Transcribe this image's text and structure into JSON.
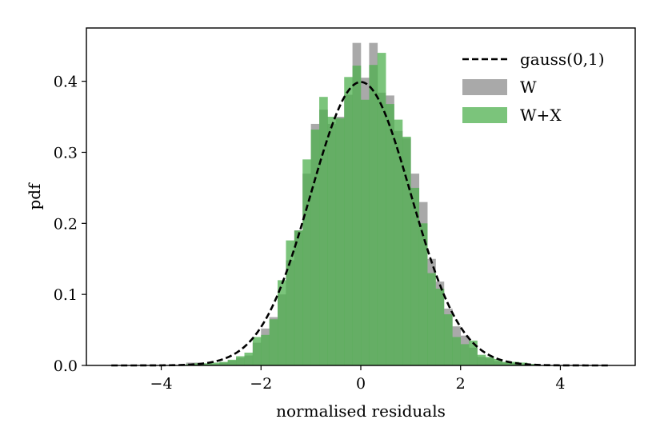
{
  "chart_data": {
    "type": "bar",
    "title": "",
    "xlabel": "normalised residuals",
    "ylabel": "pdf",
    "xlim": [
      -5.5,
      5.5
    ],
    "ylim": [
      0,
      0.475
    ],
    "xticks": [
      -4,
      -2,
      0,
      2,
      4
    ],
    "xtick_labels": [
      "−4",
      "−2",
      "0",
      "2",
      "4"
    ],
    "yticks": [
      0.0,
      0.1,
      0.2,
      0.3,
      0.4
    ],
    "ytick_labels": [
      "0.0",
      "0.1",
      "0.2",
      "0.3",
      "0.4"
    ],
    "grid": false,
    "legend_position": "top-right",
    "bin_width": 0.1667,
    "series": [
      {
        "name": "gauss(0,1)",
        "kind": "line",
        "style": "dashed",
        "color": "#000000",
        "function": "standard normal pdf",
        "x_range": [
          -5,
          5
        ]
      },
      {
        "name": "W",
        "kind": "histogram",
        "color": "#a9a9a9",
        "bins": [
          {
            "left": -3.5,
            "value": 0.004
          },
          {
            "left": -3.333,
            "value": 0.004
          },
          {
            "left": -3.167,
            "value": 0.002
          },
          {
            "left": -3.0,
            "value": 0.002
          },
          {
            "left": -2.833,
            "value": 0.004
          },
          {
            "left": -2.667,
            "value": 0.007
          },
          {
            "left": -2.5,
            "value": 0.011
          },
          {
            "left": -2.333,
            "value": 0.014
          },
          {
            "left": -2.167,
            "value": 0.032
          },
          {
            "left": -2.0,
            "value": 0.052
          },
          {
            "left": -1.833,
            "value": 0.068
          },
          {
            "left": -1.667,
            "value": 0.1
          },
          {
            "left": -1.5,
            "value": 0.148
          },
          {
            "left": -1.333,
            "value": 0.19
          },
          {
            "left": -1.167,
            "value": 0.27
          },
          {
            "left": -1.0,
            "value": 0.34
          },
          {
            "left": -0.833,
            "value": 0.36
          },
          {
            "left": -0.667,
            "value": 0.34
          },
          {
            "left": -0.5,
            "value": 0.35
          },
          {
            "left": -0.333,
            "value": 0.381
          },
          {
            "left": -0.167,
            "value": 0.454
          },
          {
            "left": 0.0,
            "value": 0.405
          },
          {
            "left": 0.167,
            "value": 0.454
          },
          {
            "left": 0.333,
            "value": 0.384
          },
          {
            "left": 0.5,
            "value": 0.38
          },
          {
            "left": 0.667,
            "value": 0.33
          },
          {
            "left": 0.833,
            "value": 0.32
          },
          {
            "left": 1.0,
            "value": 0.27
          },
          {
            "left": 1.167,
            "value": 0.23
          },
          {
            "left": 1.333,
            "value": 0.15
          },
          {
            "left": 1.5,
            "value": 0.118
          },
          {
            "left": 1.667,
            "value": 0.08
          },
          {
            "left": 1.833,
            "value": 0.055
          },
          {
            "left": 2.0,
            "value": 0.042
          },
          {
            "left": 2.167,
            "value": 0.025
          },
          {
            "left": 2.333,
            "value": 0.012
          },
          {
            "left": 2.5,
            "value": 0.01
          },
          {
            "left": 2.667,
            "value": 0.006
          },
          {
            "left": 2.833,
            "value": 0.004
          },
          {
            "left": 3.0,
            "value": 0.003
          },
          {
            "left": 3.167,
            "value": 0.002
          },
          {
            "left": 3.333,
            "value": 0.002
          }
        ]
      },
      {
        "name": "W+X",
        "kind": "histogram",
        "color": "#4fb04f",
        "opacity": 0.75,
        "bins": [
          {
            "left": -3.5,
            "value": 0.002
          },
          {
            "left": -3.333,
            "value": 0.003
          },
          {
            "left": -3.167,
            "value": 0.003
          },
          {
            "left": -3.0,
            "value": 0.004
          },
          {
            "left": -2.833,
            "value": 0.005
          },
          {
            "left": -2.667,
            "value": 0.008
          },
          {
            "left": -2.5,
            "value": 0.013
          },
          {
            "left": -2.333,
            "value": 0.018
          },
          {
            "left": -2.167,
            "value": 0.04
          },
          {
            "left": -2.0,
            "value": 0.043
          },
          {
            "left": -1.833,
            "value": 0.065
          },
          {
            "left": -1.667,
            "value": 0.12
          },
          {
            "left": -1.5,
            "value": 0.176
          },
          {
            "left": -1.333,
            "value": 0.19
          },
          {
            "left": -1.167,
            "value": 0.29
          },
          {
            "left": -1.0,
            "value": 0.332
          },
          {
            "left": -0.833,
            "value": 0.378
          },
          {
            "left": -0.667,
            "value": 0.35
          },
          {
            "left": -0.5,
            "value": 0.348
          },
          {
            "left": -0.333,
            "value": 0.406
          },
          {
            "left": -0.167,
            "value": 0.422
          },
          {
            "left": 0.0,
            "value": 0.374
          },
          {
            "left": 0.167,
            "value": 0.423
          },
          {
            "left": 0.333,
            "value": 0.44
          },
          {
            "left": 0.5,
            "value": 0.368
          },
          {
            "left": 0.667,
            "value": 0.346
          },
          {
            "left": 0.833,
            "value": 0.322
          },
          {
            "left": 1.0,
            "value": 0.25
          },
          {
            "left": 1.167,
            "value": 0.2
          },
          {
            "left": 1.333,
            "value": 0.13
          },
          {
            "left": 1.5,
            "value": 0.108
          },
          {
            "left": 1.667,
            "value": 0.072
          },
          {
            "left": 1.833,
            "value": 0.04
          },
          {
            "left": 2.0,
            "value": 0.03
          },
          {
            "left": 2.167,
            "value": 0.035
          },
          {
            "left": 2.333,
            "value": 0.015
          },
          {
            "left": 2.5,
            "value": 0.012
          },
          {
            "left": 2.667,
            "value": 0.009
          },
          {
            "left": 2.833,
            "value": 0.005
          },
          {
            "left": 3.0,
            "value": 0.005
          },
          {
            "left": 3.167,
            "value": 0.004
          },
          {
            "left": 3.333,
            "value": 0.002
          }
        ]
      }
    ]
  }
}
